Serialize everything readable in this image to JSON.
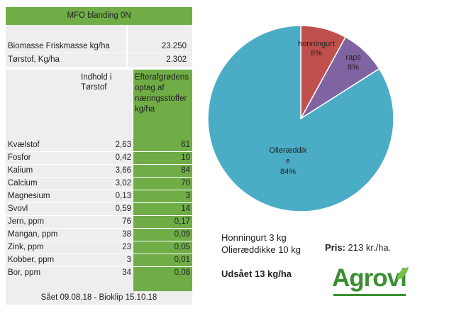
{
  "table": {
    "title": "MFO blanding 0N",
    "biomass_label": "Biomasse Friskmasse kg/ha",
    "biomass_value": "23.250",
    "drymatter_label": "Tørstof, Kg/ha",
    "drymatter_value": "2.302",
    "col_content_header_1": "Indhold i",
    "col_content_header_2": "Tørstof",
    "col_uptake_header_1": "Efterafgrødens",
    "col_uptake_header_2": "optag af",
    "col_uptake_header_3": "næringsstoffer",
    "col_uptake_header_4": "kg/ha",
    "rows": [
      {
        "name": "Kvælstof",
        "content": "2,63",
        "uptake": "61"
      },
      {
        "name": "Fosfor",
        "content": "0,42",
        "uptake": "10"
      },
      {
        "name": "Kalium",
        "content": "3,66",
        "uptake": "84"
      },
      {
        "name": "Calcium",
        "content": "3,02",
        "uptake": "70"
      },
      {
        "name": "Magnesium",
        "content": "0,13",
        "uptake": "3"
      },
      {
        "name": "Svovl",
        "content": "0,59",
        "uptake": "14"
      },
      {
        "name": "Jern, ppm",
        "content": "76",
        "uptake": "0,17"
      },
      {
        "name": "Mangan, ppm",
        "content": "38",
        "uptake": "0,09"
      },
      {
        "name": "Zink, ppm",
        "content": "23",
        "uptake": "0,05"
      },
      {
        "name": "Kobber, ppm",
        "content": "3",
        "uptake": "0,01"
      },
      {
        "name": "Bor, ppm",
        "content": "34",
        "uptake": "0,08"
      }
    ],
    "footer": "Sået 09.08.18 - Bioklip 15.10.18"
  },
  "chart_data": {
    "type": "pie",
    "start_angle_deg": 0,
    "direction": "clockwise",
    "slices": [
      {
        "label": "honningurt",
        "percent_label": "8%",
        "value": 8,
        "color": "#c0504d"
      },
      {
        "label": "raps",
        "percent_label": "8%",
        "value": 8,
        "color": "#8064a2"
      },
      {
        "label": "Olieræddik e",
        "label_line1": "Olieræddik",
        "label_line2": "e",
        "percent_label": "84%",
        "value": 84,
        "color": "#4bacc6"
      }
    ]
  },
  "info": {
    "seed_line1": "Honningurt 3 kg",
    "seed_line2": "Olieræddikke 10 kg",
    "price_label": "Pris:",
    "price_value": "213 kr./ha.",
    "sown": "Udsået 13 kg/ha"
  },
  "logo": {
    "text": "Agrovi",
    "color": "#3a8f32",
    "leaf_color": "#7cc04a"
  }
}
